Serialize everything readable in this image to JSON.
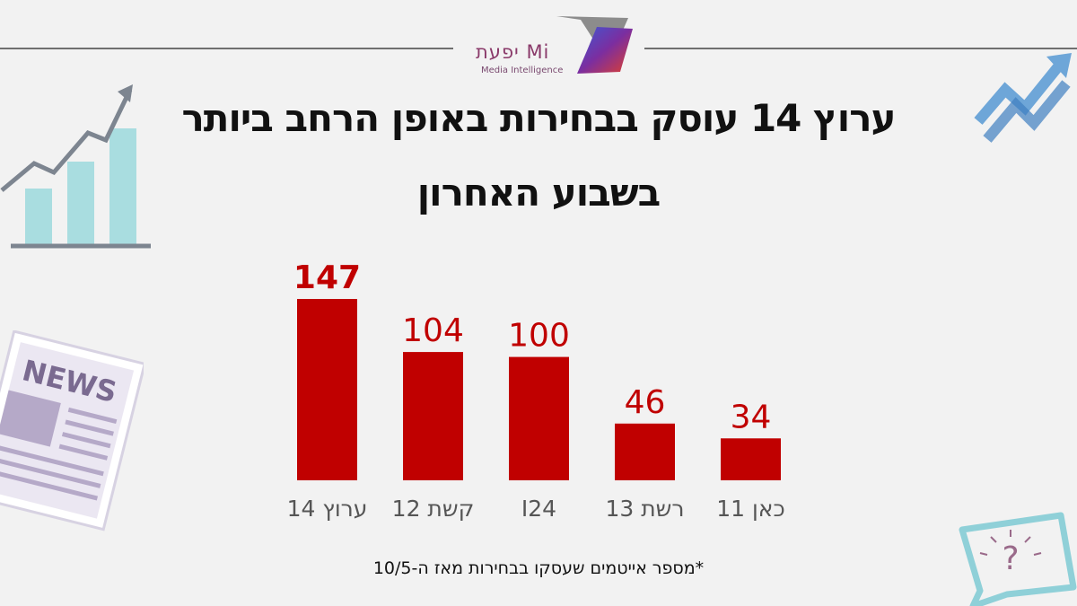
{
  "brand": {
    "logo_text": "יפעת Mi",
    "logo_subtext": "Media Intelligence"
  },
  "title": {
    "line1": "ערוץ 14 עוסק בבחירות באופן הרחב ביותר",
    "line2": "בשבוע האחרון"
  },
  "footnote": "*מספר אייטמים שעסקו בבחירות מאז ה-10/5",
  "decorations": {
    "news_label": "NEWS"
  },
  "colors": {
    "bar": "#c00000",
    "label": "#c00000",
    "category": "#555555"
  },
  "chart_data": {
    "type": "bar",
    "categories": [
      "ערוץ 14",
      "קשת 12",
      "I24",
      "רשת 13",
      "כאן 11"
    ],
    "values": [
      147,
      104,
      100,
      46,
      34
    ],
    "highlight_index": 0,
    "ylim": [
      0,
      147
    ],
    "grid": false,
    "title": "",
    "xlabel": "",
    "ylabel": ""
  }
}
